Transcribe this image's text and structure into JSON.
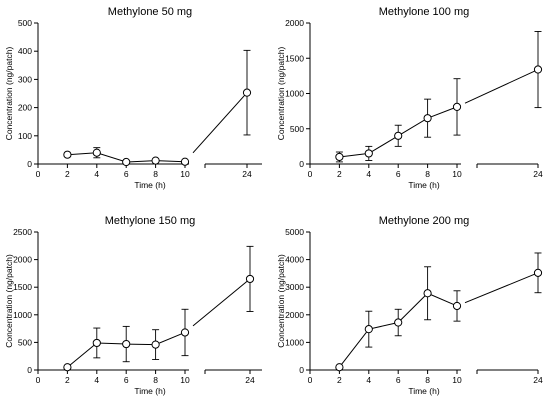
{
  "chart_data": [
    {
      "type": "line",
      "title": "Methylone 50 mg",
      "xlabel": "Time (h)",
      "ylabel": "Concentration (ng/patch)",
      "ylim": [
        0,
        500
      ],
      "yticks": [
        0,
        100,
        200,
        300,
        400,
        500
      ],
      "xticks": [
        0,
        2,
        4,
        6,
        8,
        10,
        24
      ],
      "x": [
        2,
        4,
        6,
        8,
        10,
        24
      ],
      "y": [
        33,
        40,
        7,
        12,
        8,
        253
      ],
      "err": [
        0,
        18,
        0,
        5,
        4,
        150
      ]
    },
    {
      "type": "line",
      "title": "Methylone 100 mg",
      "xlabel": "Time (h)",
      "ylabel": "Concentration (ng/patch)",
      "ylim": [
        0,
        2000
      ],
      "yticks": [
        0,
        500,
        1000,
        1500,
        2000
      ],
      "xticks": [
        0,
        2,
        4,
        6,
        8,
        10,
        24
      ],
      "x": [
        2,
        4,
        6,
        8,
        10,
        24
      ],
      "y": [
        100,
        150,
        400,
        650,
        810,
        1340
      ],
      "err": [
        70,
        100,
        150,
        270,
        400,
        540
      ]
    },
    {
      "type": "line",
      "title": "Methylone 150 mg",
      "xlabel": "Time (h)",
      "ylabel": "Concentration (ng/patch)",
      "ylim": [
        0,
        2500
      ],
      "yticks": [
        0,
        500,
        1000,
        1500,
        2000,
        2500
      ],
      "xticks": [
        0,
        2,
        4,
        6,
        8,
        10,
        24
      ],
      "x": [
        2,
        4,
        6,
        8,
        10,
        24
      ],
      "y": [
        50,
        490,
        470,
        460,
        680,
        1650
      ],
      "err": [
        0,
        270,
        320,
        270,
        420,
        590
      ]
    },
    {
      "type": "line",
      "title": "Methylone 200 mg",
      "xlabel": "Time (h)",
      "ylabel": "Concentration (ng/patch)",
      "ylim": [
        0,
        5000
      ],
      "yticks": [
        0,
        1000,
        2000,
        3000,
        4000,
        5000
      ],
      "xticks": [
        0,
        2,
        4,
        6,
        8,
        10,
        24
      ],
      "x": [
        2,
        4,
        6,
        8,
        10,
        24
      ],
      "y": [
        100,
        1480,
        1720,
        2780,
        2320,
        3520
      ],
      "err": [
        0,
        650,
        480,
        960,
        550,
        720
      ]
    }
  ]
}
